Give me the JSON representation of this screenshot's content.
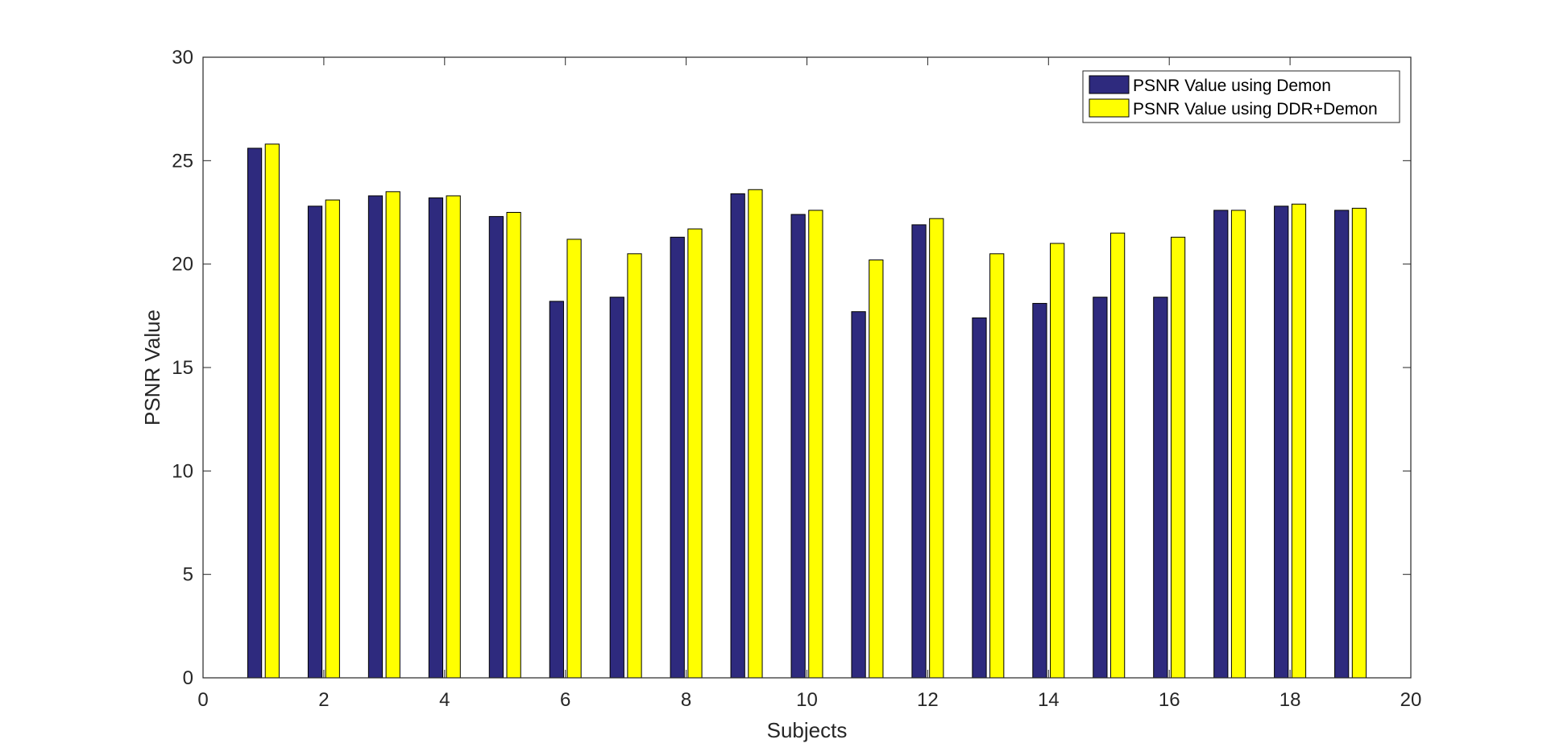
{
  "chart_data": {
    "type": "bar",
    "title": "",
    "xlabel": "Subjects",
    "ylabel": "PSNR Value",
    "xlim": [
      0,
      20
    ],
    "ylim": [
      0,
      30
    ],
    "x_ticks": [
      0,
      2,
      4,
      6,
      8,
      10,
      12,
      14,
      16,
      18,
      20
    ],
    "y_ticks": [
      0,
      5,
      10,
      15,
      20,
      25,
      30
    ],
    "categories": [
      1,
      2,
      3,
      4,
      5,
      6,
      7,
      8,
      9,
      10,
      11,
      12,
      13,
      14,
      15,
      16,
      17,
      18,
      19
    ],
    "series": [
      {
        "name": "PSNR Value using Demon",
        "color": "#2e2a7e",
        "values": [
          25.6,
          22.8,
          23.3,
          23.2,
          22.3,
          18.2,
          18.4,
          21.3,
          23.4,
          22.4,
          17.7,
          21.9,
          17.4,
          18.1,
          18.4,
          18.4,
          22.6,
          22.8,
          22.6
        ]
      },
      {
        "name": "PSNR Value using DDR+Demon",
        "color": "#ffff00",
        "values": [
          25.8,
          23.1,
          23.5,
          23.3,
          22.5,
          21.2,
          20.5,
          21.7,
          23.6,
          22.6,
          20.2,
          22.2,
          20.5,
          21.0,
          21.5,
          21.3,
          22.6,
          22.9,
          22.7
        ]
      }
    ],
    "grid": false,
    "legend_position": "top-right"
  }
}
